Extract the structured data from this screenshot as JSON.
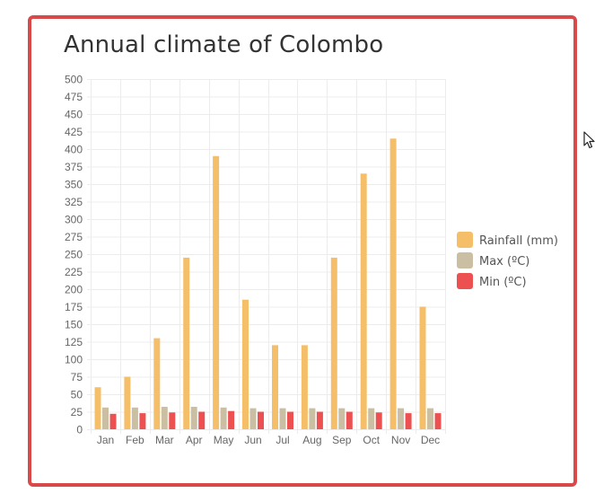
{
  "colors": {
    "border": "#d9494a",
    "rainfall": "#f5bf6a",
    "max": "#cbbfa3",
    "min": "#ec5050",
    "grid": "#ececec",
    "axis_text": "#666666"
  },
  "chart_data": {
    "type": "bar",
    "title": "Annual climate of Colombo",
    "categories": [
      "Jan",
      "Feb",
      "Mar",
      "Apr",
      "May",
      "Jun",
      "Jul",
      "Aug",
      "Sep",
      "Oct",
      "Nov",
      "Dec"
    ],
    "series": [
      {
        "name": "Rainfall (mm)",
        "color": "#f5bf6a",
        "values": [
          60,
          75,
          130,
          245,
          390,
          185,
          120,
          120,
          245,
          365,
          415,
          175
        ]
      },
      {
        "name": "Max (ºC)",
        "color": "#cbbfa3",
        "values": [
          31,
          31,
          32,
          32,
          31,
          30,
          30,
          30,
          30,
          30,
          30,
          30
        ]
      },
      {
        "name": "Min (ºC)",
        "color": "#ec5050",
        "values": [
          22,
          23,
          24,
          25,
          26,
          25,
          25,
          25,
          25,
          24,
          23,
          23
        ]
      }
    ],
    "yticks": [
      "500",
      "475",
      "450",
      "425",
      "400",
      "375",
      "350",
      "325",
      "300",
      "275",
      "250",
      "225",
      "200",
      "175",
      "150",
      "125",
      "100",
      "75",
      "50",
      "25",
      "0"
    ],
    "ylim": [
      0,
      500
    ],
    "ystep": 25,
    "grid": true,
    "legend_position": "right"
  }
}
